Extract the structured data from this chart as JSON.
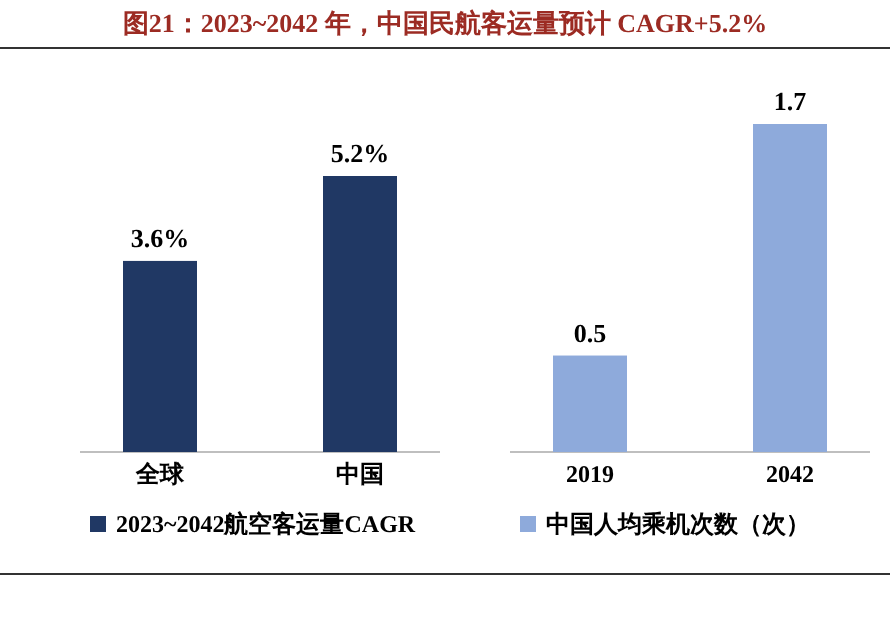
{
  "chart_data": [
    {
      "type": "bar",
      "title": "图21：2023~2042 年，中国民航客运量预计 CAGR+5.2%",
      "categories": [
        "全球",
        "中国"
      ],
      "legend": "bottom",
      "series": [
        {
          "name": "2023~2042航空客运量CAGR",
          "color": "#203864",
          "values": [
            3.6,
            5.2
          ],
          "value_labels": [
            "3.6%",
            "5.2%"
          ]
        }
      ]
    },
    {
      "type": "bar",
      "categories": [
        "2019",
        "2042"
      ],
      "legend": "bottom",
      "data_labels": true,
      "series": [
        {
          "name": "中国人均乘机次数（次）",
          "color": "#8EAADB",
          "values": [
            0.5,
            1.7
          ]
        }
      ]
    }
  ]
}
